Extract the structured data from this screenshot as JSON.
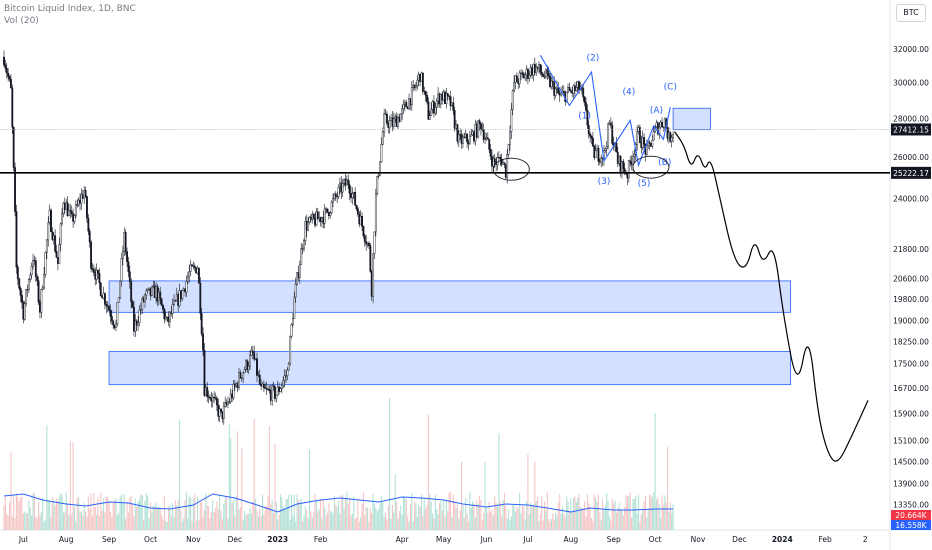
{
  "header": {
    "title": "Bitcoin Liquid Index, 1D, BNC",
    "volume_label": "Vol (20)",
    "symbol_button": "BTC"
  },
  "chart_data": {
    "type": "candlestick",
    "y_scale": "log",
    "ylim": [
      12900,
      33200
    ],
    "y_ticks": [
      "32000.00",
      "30000.00",
      "28000.00",
      "26000.00",
      "24000.00",
      "21800.00",
      "20600.00",
      "19800.00",
      "19000.00",
      "18250.00",
      "17500.00",
      "16700.00",
      "15900.00",
      "15100.00",
      "14500.00",
      "13900.00",
      "13350.00"
    ],
    "y_tick_values": [
      32000,
      30000,
      28000,
      26000,
      24000,
      21800,
      20600,
      19800,
      19000,
      18250,
      17500,
      16700,
      15900,
      15100,
      14500,
      13900,
      13350
    ],
    "x_ticks": [
      "Jul",
      "Aug",
      "Sep",
      "Oct",
      "Nov",
      "Dec",
      "2023",
      "Feb",
      "Apr",
      "May",
      "Jun",
      "Jul",
      "Aug",
      "Sep",
      "Oct",
      "Nov",
      "Dec",
      "2024",
      "Feb",
      "2"
    ],
    "x_tick_dates": [
      "2022-07-01",
      "2022-08-01",
      "2022-09-01",
      "2022-10-01",
      "2022-11-01",
      "2022-12-01",
      "2023-01-01",
      "2023-02-01",
      "2023-04-01",
      "2023-05-01",
      "2023-06-01",
      "2023-07-01",
      "2023-08-01",
      "2023-09-01",
      "2023-10-01",
      "2023-11-01",
      "2023-12-01",
      "2024-01-01",
      "2024-02-01",
      "2024-03-01"
    ],
    "price_path": [
      [
        "2022-06-17",
        31500
      ],
      [
        "2022-06-22",
        29500
      ],
      [
        "2022-06-26",
        21000
      ],
      [
        "2022-07-01",
        19300
      ],
      [
        "2022-07-08",
        21500
      ],
      [
        "2022-07-13",
        19400
      ],
      [
        "2022-07-20",
        23200
      ],
      [
        "2022-07-26",
        21200
      ],
      [
        "2022-07-30",
        24000
      ],
      [
        "2022-08-05",
        23000
      ],
      [
        "2022-08-14",
        24400
      ],
      [
        "2022-08-19",
        21300
      ],
      [
        "2022-08-26",
        20200
      ],
      [
        "2022-09-06",
        18800
      ],
      [
        "2022-09-12",
        22300
      ],
      [
        "2022-09-19",
        18700
      ],
      [
        "2022-09-27",
        19900
      ],
      [
        "2022-10-05",
        20100
      ],
      [
        "2022-10-13",
        18900
      ],
      [
        "2022-10-18",
        19500
      ],
      [
        "2022-10-25",
        20200
      ],
      [
        "2022-10-29",
        20800
      ],
      [
        "2022-11-04",
        21100
      ],
      [
        "2022-11-08",
        18000
      ],
      [
        "2022-11-09",
        16700
      ],
      [
        "2022-11-14",
        16400
      ],
      [
        "2022-11-21",
        15800
      ],
      [
        "2022-11-28",
        16400
      ],
      [
        "2022-12-05",
        17100
      ],
      [
        "2022-12-14",
        17800
      ],
      [
        "2022-12-20",
        16600
      ],
      [
        "2022-12-31",
        16500
      ],
      [
        "2023-01-08",
        17200
      ],
      [
        "2023-01-13",
        19800
      ],
      [
        "2023-01-21",
        22800
      ],
      [
        "2023-01-30",
        23100
      ],
      [
        "2023-02-05",
        23300
      ],
      [
        "2023-02-16",
        24500
      ],
      [
        "2023-02-21",
        24800
      ],
      [
        "2023-02-28",
        23400
      ],
      [
        "2023-03-08",
        21800
      ],
      [
        "2023-03-10",
        20200
      ],
      [
        "2023-03-13",
        24100
      ],
      [
        "2023-03-19",
        27900
      ],
      [
        "2023-03-25",
        27700
      ],
      [
        "2023-04-01",
        28300
      ],
      [
        "2023-04-10",
        29600
      ],
      [
        "2023-04-14",
        30500
      ],
      [
        "2023-04-20",
        28200
      ],
      [
        "2023-04-29",
        29300
      ],
      [
        "2023-05-06",
        28800
      ],
      [
        "2023-05-12",
        26800
      ],
      [
        "2023-05-20",
        26900
      ],
      [
        "2023-05-28",
        27700
      ],
      [
        "2023-06-06",
        25700
      ],
      [
        "2023-06-12",
        25900
      ],
      [
        "2023-06-15",
        25300
      ],
      [
        "2023-06-21",
        30000
      ],
      [
        "2023-06-30",
        30500
      ],
      [
        "2023-07-06",
        30900
      ],
      [
        "2023-07-14",
        30300
      ],
      [
        "2023-07-24",
        29200
      ],
      [
        "2023-08-08",
        29700
      ],
      [
        "2023-08-17",
        26200
      ],
      [
        "2023-08-25",
        26100
      ],
      [
        "2023-08-29",
        27700
      ],
      [
        "2023-09-04",
        25800
      ],
      [
        "2023-09-11",
        25200
      ],
      [
        "2023-09-19",
        27200
      ],
      [
        "2023-09-25",
        26200
      ],
      [
        "2023-10-02",
        27500
      ],
      [
        "2023-10-08",
        27900
      ],
      [
        "2023-10-11",
        26900
      ],
      [
        "2023-10-14",
        27400
      ]
    ],
    "volume_avg": [
      [
        "2022-06-17",
        34
      ],
      [
        "2022-07-01",
        36
      ],
      [
        "2022-07-15",
        30
      ],
      [
        "2022-08-01",
        26
      ],
      [
        "2022-08-15",
        24
      ],
      [
        "2022-09-01",
        28
      ],
      [
        "2022-09-15",
        27
      ],
      [
        "2022-10-01",
        22
      ],
      [
        "2022-10-15",
        21
      ],
      [
        "2022-11-01",
        25
      ],
      [
        "2022-11-15",
        36
      ],
      [
        "2022-12-01",
        32
      ],
      [
        "2022-12-15",
        26
      ],
      [
        "2023-01-01",
        18
      ],
      [
        "2023-01-15",
        26
      ],
      [
        "2023-02-01",
        30
      ],
      [
        "2023-02-15",
        32
      ],
      [
        "2023-03-01",
        30
      ],
      [
        "2023-03-15",
        28
      ],
      [
        "2023-04-01",
        33
      ],
      [
        "2023-04-15",
        32
      ],
      [
        "2023-05-01",
        30
      ],
      [
        "2023-05-15",
        26
      ],
      [
        "2023-06-01",
        23
      ],
      [
        "2023-06-15",
        26
      ],
      [
        "2023-07-01",
        25
      ],
      [
        "2023-07-15",
        22
      ],
      [
        "2023-08-01",
        18
      ],
      [
        "2023-08-15",
        22
      ],
      [
        "2023-09-01",
        20
      ],
      [
        "2023-09-15",
        20
      ],
      [
        "2023-10-01",
        21
      ],
      [
        "2023-10-14",
        21
      ]
    ],
    "horizontal_lines": [
      {
        "price": 25222.17,
        "label": "25222.17"
      }
    ],
    "current_price": {
      "price": 27412.15,
      "label": "27412.15"
    },
    "volume_labels": [
      "20.664K",
      "16.558K"
    ],
    "zones": [
      {
        "from": "2022-09-01",
        "to": "2024-01-07",
        "low": 19300,
        "high": 20500
      },
      {
        "from": "2022-09-01",
        "to": "2024-01-07",
        "low": 16800,
        "high": 17900
      },
      {
        "from": "2023-10-14",
        "to": "2023-11-10",
        "low": 27400,
        "high": 28550
      }
    ],
    "wave_path": [
      [
        "2023-07-10",
        31600
      ],
      [
        "2023-07-31",
        28700
      ],
      [
        "2023-08-16",
        30600
      ],
      [
        "2023-08-25",
        25800
      ],
      [
        "2023-09-13",
        27900
      ],
      [
        "2023-09-19",
        25600
      ],
      [
        "2023-09-30",
        27600
      ],
      [
        "2023-10-07",
        26900
      ],
      [
        "2023-10-12",
        28600
      ]
    ],
    "wave_labels": [
      {
        "text": "(1)",
        "date": "2023-08-11",
        "price": 28000
      },
      {
        "text": "(2)",
        "date": "2023-08-17",
        "price": 31300
      },
      {
        "text": "(3)",
        "date": "2023-08-25",
        "price": 24700
      },
      {
        "text": "(4)",
        "date": "2023-09-12",
        "price": 29300
      },
      {
        "text": "(5)",
        "date": "2023-09-23",
        "price": 24600
      },
      {
        "text": "(A)",
        "date": "2023-10-02",
        "price": 28300
      },
      {
        "text": "(B)",
        "date": "2023-10-08",
        "price": 25600
      },
      {
        "text": "(C)",
        "date": "2023-10-12",
        "price": 29600
      }
    ],
    "circles": [
      {
        "date": "2023-06-19",
        "price": 25400
      },
      {
        "date": "2023-09-28",
        "price": 25500
      }
    ],
    "projection": [
      [
        "2023-10-15",
        27300
      ],
      [
        "2023-10-22",
        26600
      ],
      [
        "2023-10-27",
        25400
      ],
      [
        "2023-11-01",
        26300
      ],
      [
        "2023-11-06",
        25300
      ],
      [
        "2023-11-10",
        26000
      ],
      [
        "2023-11-16",
        24300
      ],
      [
        "2023-11-27",
        21300
      ],
      [
        "2023-12-06",
        20900
      ],
      [
        "2023-12-12",
        22300
      ],
      [
        "2023-12-18",
        21100
      ],
      [
        "2023-12-26",
        22100
      ],
      [
        "2024-01-02",
        19100
      ],
      [
        "2024-01-12",
        16600
      ],
      [
        "2024-01-20",
        18700
      ],
      [
        "2024-01-27",
        15800
      ],
      [
        "2024-02-03",
        14700
      ],
      [
        "2024-02-10",
        14400
      ],
      [
        "2024-02-20",
        15200
      ],
      [
        "2024-03-03",
        16300
      ]
    ],
    "colors": {
      "up": "#131722",
      "down": "#131722",
      "volume_ma": "#2962ff",
      "zone_fill": "#2962ff",
      "zone_stroke": "#2962ff",
      "wave": "#2962ff",
      "label_red": "#f23645",
      "label_blue": "#2962ff"
    }
  }
}
